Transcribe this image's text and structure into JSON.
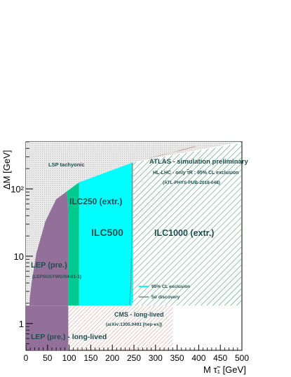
{
  "chart_data": {
    "type": "area",
    "xlabel": "M τ̃₁ [GeV]",
    "ylabel": "ΔM [GeV]",
    "xlim": [
      0,
      500
    ],
    "ylim": [
      0.4,
      500
    ],
    "y_scale": "log",
    "grid": false,
    "x_ticks": [
      "0",
      "50",
      "100",
      "150",
      "200",
      "250",
      "300",
      "350",
      "400",
      "450",
      "500"
    ],
    "y_ticks": [
      {
        "value": 1,
        "label": "1"
      },
      {
        "value": 10,
        "label": "10"
      },
      {
        "value": 100,
        "label": "10²"
      }
    ],
    "header": {
      "title": "ATLAS - simulation preliminary",
      "line2": "HL-LHC - only τ̃R : 95% CL exclusion",
      "line3": "(ATL-PHYS-PUB-2018-048)"
    },
    "regions": [
      {
        "name": "LSP tachyonic",
        "label": "LSP tachyonic",
        "color": "#d9d9d9",
        "polygon": [
          [
            0,
            1.777
          ],
          [
            250,
            251.777
          ],
          [
            500,
            501.777
          ],
          [
            500,
            500
          ],
          [
            0,
            500
          ]
        ]
      },
      {
        "name": "CMS long-lived",
        "label": "CMS - long-lived",
        "sublabel": "(arXiv:1305.0491 [hep-ex])",
        "color": "#c97b6b",
        "hatched": true,
        "polygon": [
          [
            98,
            0.4
          ],
          [
            340,
            0.4
          ],
          [
            340,
            1.85
          ],
          [
            98,
            1.85
          ]
        ]
      },
      {
        "name": "LEP long-lived",
        "label": "LEP (pre.) - long-lived",
        "color": "#93709a",
        "polygon": [
          [
            0,
            0.4
          ],
          [
            98,
            0.4
          ],
          [
            98,
            1.85
          ],
          [
            0,
            1.85
          ]
        ]
      },
      {
        "name": "LEP",
        "label": "LEP (pre.)",
        "sublabel": "(LEPSUSYWG/04-01-1)",
        "color": "#93709a",
        "polygon": [
          [
            36,
            1.85
          ],
          [
            98,
            1.85
          ],
          [
            98,
            30
          ],
          [
            97,
            60
          ],
          [
            95,
            92
          ],
          [
            70,
            70
          ],
          [
            45,
            33
          ],
          [
            24,
            11
          ],
          [
            13,
            4
          ],
          [
            9,
            2.4
          ],
          [
            8,
            1.85
          ]
        ]
      },
      {
        "name": "ILC250",
        "label": "ILC250 (extr.)",
        "color": "#00c98f",
        "polygon": [
          [
            98,
            1.85
          ],
          [
            123,
            1.85
          ],
          [
            123,
            125
          ],
          [
            95,
            92
          ],
          [
            97,
            60
          ],
          [
            98,
            30
          ]
        ]
      },
      {
        "name": "ILC500",
        "label": "ILC500",
        "color": "#00ffff",
        "polygon": [
          [
            123,
            1.85
          ],
          [
            245,
            1.85
          ],
          [
            248,
            2.3
          ],
          [
            248,
            248
          ],
          [
            123,
            125
          ]
        ]
      },
      {
        "name": "ILC1000",
        "label": "ILC1000 (extr.)",
        "color": "#2e8b57",
        "hatched": true,
        "polygon": [
          [
            245,
            1.85
          ],
          [
            248,
            2.3
          ],
          [
            248,
            248
          ],
          [
            500,
            480
          ],
          [
            500,
            1.85
          ]
        ]
      },
      {
        "name": "ATLAS",
        "label": "",
        "color": "#8b1a10",
        "polygon": [
          [
            285,
            285
          ],
          [
            325,
            330
          ],
          [
            390,
            425
          ],
          [
            395,
            430
          ],
          [
            360,
            375
          ],
          [
            310,
            315
          ],
          [
            280,
            280
          ]
        ]
      }
    ],
    "legend": [
      {
        "label": "95% CL exclusion",
        "color": "#00ffff"
      },
      {
        "label": "5σ discovery",
        "color": "#6f8f8f"
      }
    ],
    "legend_placement": "lower-right"
  }
}
